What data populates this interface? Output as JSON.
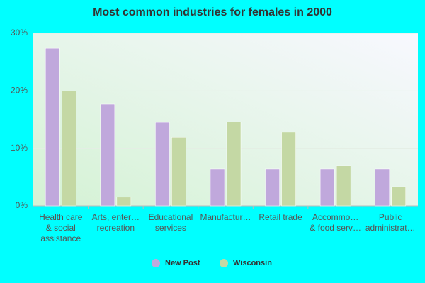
{
  "chart_data": {
    "type": "bar",
    "title": "Most common industries for females in 2000",
    "categories": [
      [
        "Health care",
        "& social",
        "assistance"
      ],
      [
        "Arts, enter…",
        "recreation"
      ],
      [
        "Educational",
        "services"
      ],
      [
        "Manufactur…"
      ],
      [
        "Retail trade"
      ],
      [
        "Accommo…",
        "& food serv…"
      ],
      [
        "Public",
        "administrat…"
      ]
    ],
    "series": [
      {
        "name": "New Post",
        "color": "#c0a8dc",
        "values": [
          27.4,
          17.7,
          14.5,
          6.4,
          6.4,
          6.4,
          6.4
        ]
      },
      {
        "name": "Wisconsin",
        "color": "#c4d8a4",
        "values": [
          20.0,
          1.5,
          11.9,
          14.6,
          12.8,
          7.0,
          3.3
        ]
      }
    ],
    "ylim": [
      0,
      30
    ],
    "yticks": [
      {
        "value": 0,
        "label": "0%"
      },
      {
        "value": 10,
        "label": "10%"
      },
      {
        "value": 20,
        "label": "20%"
      },
      {
        "value": 30,
        "label": "30%"
      }
    ],
    "grid": true
  }
}
